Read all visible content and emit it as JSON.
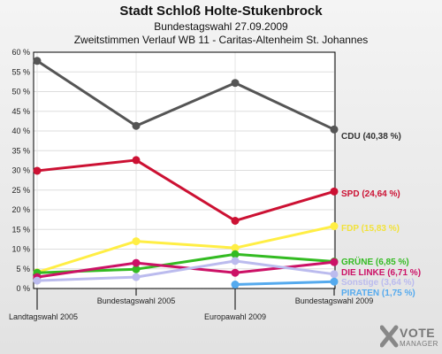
{
  "chart_data": {
    "type": "line",
    "title": "Stadt Schloß Holte-Stukenbrock",
    "subtitle": "Bundestagswahl 27.09.2009",
    "subtitle2": "Zweitstimmen Verlauf WB 11 - Caritas-Altenheim St. Johannes",
    "x": [
      "Landtagswahl 2005",
      "Bundestagswahl 2005",
      "Europawahl 2009",
      "Bundestagswahl 2009"
    ],
    "ylim": [
      0,
      60
    ],
    "yticks": [
      "0 %",
      "5 %",
      "10 %",
      "15 %",
      "20 %",
      "25 %",
      "30 %",
      "35 %",
      "40 %",
      "45 %",
      "50 %",
      "55 %",
      "60 %"
    ],
    "series": [
      {
        "name": "CDU",
        "label": "CDU (40,38 %)",
        "color": "#555555",
        "values": [
          57.8,
          41.3,
          52.2,
          40.38
        ]
      },
      {
        "name": "SPD",
        "label": "SPD (24,64 %)",
        "color": "#cc1133",
        "values": [
          29.9,
          32.6,
          17.2,
          24.64
        ]
      },
      {
        "name": "FDP",
        "label": "FDP (15,83 %)",
        "color": "#ffee44",
        "values": [
          4.1,
          12.0,
          10.3,
          15.83
        ]
      },
      {
        "name": "GRÜNE",
        "label": "GRÜNE (6,85 %)",
        "color": "#33bb22",
        "values": [
          4.0,
          4.9,
          8.7,
          6.85
        ]
      },
      {
        "name": "DIE LINKE",
        "label": "DIE LINKE (6,71 %)",
        "color": "#cc1166",
        "values": [
          2.9,
          6.5,
          4.0,
          6.71
        ]
      },
      {
        "name": "Sonstige",
        "label": "Sonstige (3,64 %)",
        "color": "#bbbbee",
        "values": [
          2.0,
          2.9,
          7.0,
          3.64
        ]
      },
      {
        "name": "PIRATEN",
        "label": "PIRATEN (1,75 %)",
        "color": "#55aaee",
        "values": [
          null,
          null,
          1.0,
          1.75
        ]
      }
    ]
  },
  "logo": {
    "vote": "VOTE",
    "manager": "MANAGER"
  }
}
